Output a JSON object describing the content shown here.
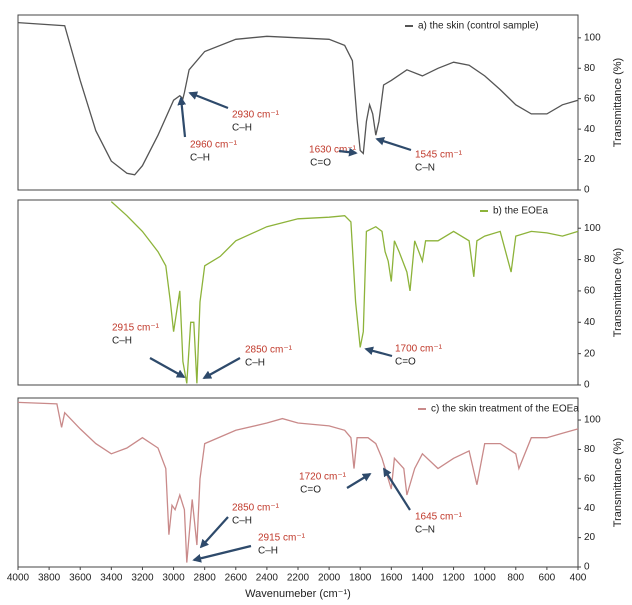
{
  "chart_data": [
    {
      "type": "line",
      "legend": "top-right",
      "ylabel": "Transmittance (%)",
      "xlim": [
        4000,
        400
      ],
      "ylim": [
        0,
        115
      ],
      "yticks": [
        0,
        20,
        40,
        60,
        80,
        100
      ],
      "x": [
        4000,
        3700,
        3600,
        3500,
        3400,
        3300,
        3250,
        3200,
        3100,
        3000,
        2960,
        2940,
        2930,
        2900,
        2800,
        2600,
        2400,
        2200,
        2000,
        1900,
        1850,
        1820,
        1800,
        1780,
        1760,
        1740,
        1720,
        1700,
        1680,
        1650,
        1600,
        1500,
        1400,
        1300,
        1200,
        1100,
        1000,
        900,
        800,
        700,
        600,
        500,
        400
      ],
      "series": [
        {
          "name": "a) the skin (control sample)",
          "color": "#555555",
          "values": [
            110,
            108,
            72,
            39,
            19,
            11,
            10,
            16,
            36,
            59,
            62,
            60,
            64,
            79,
            91,
            99,
            101,
            100,
            99,
            95,
            85,
            46,
            26,
            24,
            45,
            56,
            50,
            36,
            45,
            69,
            72,
            79,
            75,
            80,
            84,
            82,
            75,
            66,
            56,
            50,
            50,
            56,
            59
          ]
        }
      ],
      "annotations": [
        {
          "wavenumber": "2930 cm⁻¹",
          "bond": "C–H"
        },
        {
          "wavenumber": "2960 cm⁻¹",
          "bond": "C–H"
        },
        {
          "wavenumber": "1630 cm⁻¹",
          "bond": "C=O"
        },
        {
          "wavenumber": "1545 cm⁻¹",
          "bond": "C–N"
        }
      ]
    },
    {
      "type": "line",
      "legend": "top-right",
      "ylabel": "Transmittance (%)",
      "xlim": [
        4000,
        400
      ],
      "ylim": [
        0,
        118
      ],
      "yticks": [
        0,
        20,
        40,
        60,
        80,
        100
      ],
      "x": [
        3400,
        3300,
        3200,
        3100,
        3050,
        3020,
        3000,
        2960,
        2940,
        2915,
        2890,
        2870,
        2850,
        2830,
        2800,
        2700,
        2600,
        2400,
        2200,
        2000,
        1900,
        1860,
        1830,
        1800,
        1780,
        1760,
        1700,
        1660,
        1640,
        1620,
        1600,
        1580,
        1550,
        1500,
        1480,
        1450,
        1400,
        1380,
        1300,
        1200,
        1100,
        1070,
        1050,
        1000,
        900,
        830,
        800,
        700,
        600,
        500,
        400
      ],
      "series": [
        {
          "name": "b) the EOEa",
          "color": "#8db33a",
          "values": [
            117,
            108,
            98,
            85,
            76,
            53,
            34,
            60,
            15,
            1,
            40,
            40,
            1,
            53,
            76,
            82,
            92,
            101,
            106,
            107,
            108,
            104,
            53,
            24,
            34,
            98,
            101,
            98,
            85,
            79,
            66,
            92,
            85,
            72,
            60,
            92,
            79,
            92,
            92,
            98,
            92,
            69,
            92,
            95,
            98,
            72,
            95,
            98,
            97,
            95,
            98
          ]
        }
      ],
      "annotations": [
        {
          "wavenumber": "2915 cm⁻¹",
          "bond": "C–H"
        },
        {
          "wavenumber": "2850 cm⁻¹",
          "bond": "C–H"
        },
        {
          "wavenumber": "1700 cm⁻¹",
          "bond": "C=O"
        }
      ]
    },
    {
      "type": "line",
      "legend": "top-right",
      "ylabel": "Transmittance (%)",
      "xlabel": "Wavenumeber (cm⁻¹)",
      "xlim": [
        4000,
        400
      ],
      "ylim": [
        0,
        115
      ],
      "yticks": [
        0,
        20,
        40,
        60,
        80,
        100
      ],
      "xticks": [
        4000,
        3800,
        3600,
        3400,
        3200,
        3000,
        2800,
        2600,
        2400,
        2200,
        2000,
        1800,
        1600,
        1400,
        1200,
        1000,
        800,
        600,
        400
      ],
      "x": [
        4000,
        3750,
        3720,
        3700,
        3600,
        3500,
        3400,
        3300,
        3200,
        3100,
        3050,
        3030,
        3010,
        2990,
        2960,
        2930,
        2915,
        2880,
        2850,
        2830,
        2800,
        2600,
        2400,
        2300,
        2200,
        2000,
        1900,
        1860,
        1840,
        1820,
        1750,
        1700,
        1660,
        1640,
        1600,
        1580,
        1520,
        1500,
        1450,
        1400,
        1300,
        1200,
        1100,
        1050,
        1000,
        900,
        800,
        780,
        700,
        600,
        500,
        400
      ],
      "series": [
        {
          "name": "c) the skin treatment of the EOEa",
          "color": "#c98a8a",
          "values": [
            112,
            111,
            95,
            105,
            94,
            84,
            77,
            81,
            88,
            81,
            67,
            22,
            42,
            39,
            49,
            39,
            3,
            46,
            15,
            60,
            84,
            93,
            98,
            101,
            98,
            96,
            93,
            88,
            67,
            88,
            88,
            84,
            74,
            67,
            53,
            74,
            67,
            49,
            67,
            77,
            67,
            74,
            79,
            56,
            84,
            84,
            77,
            67,
            88,
            88,
            91,
            94
          ]
        }
      ],
      "annotations": [
        {
          "wavenumber": "2850 cm⁻¹",
          "bond": "C–H"
        },
        {
          "wavenumber": "2915 cm⁻¹",
          "bond": "C–H"
        },
        {
          "wavenumber": "1720 cm⁻¹",
          "bond": "C=O"
        },
        {
          "wavenumber": "1645 cm⁻¹",
          "bond": "C–N"
        }
      ]
    }
  ]
}
